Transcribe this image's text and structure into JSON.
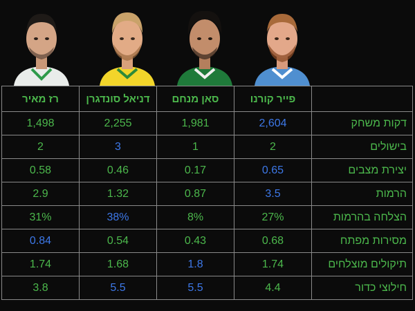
{
  "colors": {
    "background": "#0b0b0b",
    "value_green": "#4cb84c",
    "highlight_blue": "#3d78e8",
    "border": "#8a8a8a"
  },
  "players": [
    {
      "name": "פייר קורנו",
      "jersey": "blue"
    },
    {
      "name": "סאן מנחם",
      "jersey": "green"
    },
    {
      "name": "דניאל סונדגרן",
      "jersey": "yellow"
    },
    {
      "name": "רז מאיר",
      "jersey": "green"
    }
  ],
  "rows": [
    {
      "label": "דקות משחק",
      "values": [
        "2,604",
        "1,981",
        "2,255",
        "1,498"
      ],
      "best": 0
    },
    {
      "label": "בישולים",
      "values": [
        "2",
        "1",
        "3",
        "2"
      ],
      "best": 2
    },
    {
      "label": "יצירת מצבים",
      "values": [
        "0.65",
        "0.17",
        "0.46",
        "0.58"
      ],
      "best": 0
    },
    {
      "label": "הרמות",
      "values": [
        "3.5",
        "0.87",
        "1.32",
        "2.9"
      ],
      "best": 0
    },
    {
      "label": "הצלחה בהרמות",
      "values": [
        "27%",
        "8%",
        "38%",
        "31%"
      ],
      "best": 2
    },
    {
      "label": "מסירות מפתח",
      "values": [
        "0.68",
        "0.43",
        "0.54",
        "0.84"
      ],
      "best": 3
    },
    {
      "label": "תיקולים מוצלחים",
      "values": [
        "1.74",
        "1.8",
        "1.68",
        "1.74"
      ],
      "best": 1
    },
    {
      "label": "חילוצי כדור",
      "values": [
        "4.4",
        "5.5",
        "5.5",
        "3.8"
      ],
      "best": [
        1,
        2
      ]
    }
  ]
}
